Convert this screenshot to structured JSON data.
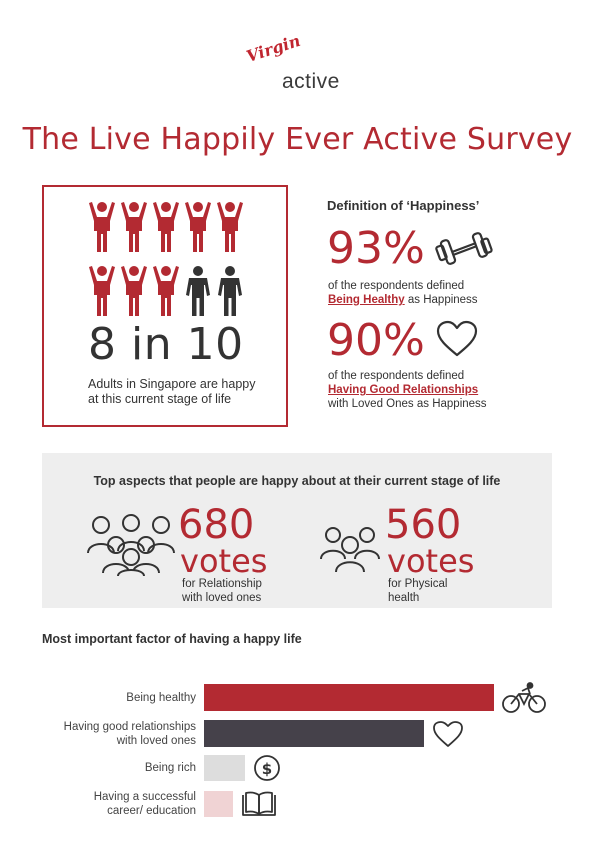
{
  "brand": {
    "script": "Virgin",
    "word": "active",
    "color": "#c0252f"
  },
  "title": "The Live Happily Ever Active Survey",
  "panel_left": {
    "people_icons": [
      "happy",
      "happy",
      "happy",
      "happy",
      "happy",
      "happy",
      "happy",
      "happy",
      "neutral",
      "neutral"
    ],
    "stat": "8 in 10",
    "description": "Adults in Singapore are happy at this current stage of life"
  },
  "happiness": {
    "heading": "Definition of ‘Happiness’",
    "items": [
      {
        "pct": "93%",
        "line1": "of the respondents defined",
        "highlight": "Being Healthy",
        "rest": " as Happiness",
        "icon": "dumbbell-icon"
      },
      {
        "pct": "90%",
        "line1": "of the respondents defined",
        "highlight": "Having Good Relationships",
        "rest": "with Loved Ones as Happiness",
        "icon": "heart-icon"
      }
    ]
  },
  "aspects": {
    "heading": "Top aspects that people are happy about at their current stage of life",
    "items": [
      {
        "number": "680",
        "unit": "votes",
        "desc_line1": "for Relationship",
        "desc_line2": "with loved ones",
        "icon": "group-icon"
      },
      {
        "number": "560",
        "unit": "votes",
        "desc_line1": "for Physical",
        "desc_line2": "health",
        "icon": "group-icon"
      }
    ]
  },
  "chart_data": {
    "type": "bar",
    "orientation": "horizontal",
    "title": "Most important factor of having a happy life",
    "categories": [
      "Being healthy",
      "Having good relationships with loved ones",
      "Being rich",
      "Having a successful career/ education"
    ],
    "category_lines": [
      [
        "Being healthy"
      ],
      [
        "Having good relationships",
        "with loved ones"
      ],
      [
        "Being rich"
      ],
      [
        "Having a successful",
        "career/ education"
      ]
    ],
    "values": [
      100,
      76,
      14,
      10
    ],
    "colors": [
      "#b32a32",
      "#45414a",
      "#dddddd",
      "#f0d3d4"
    ],
    "icons": [
      "cycling-icon",
      "heart-icon",
      "dollar-coin-icon",
      "book-icon"
    ],
    "xlim": [
      0,
      100
    ],
    "grid": false,
    "legend": "none"
  },
  "colors": {
    "accent": "#b32a32",
    "dark": "#333333",
    "panel": "#eeeeee"
  }
}
